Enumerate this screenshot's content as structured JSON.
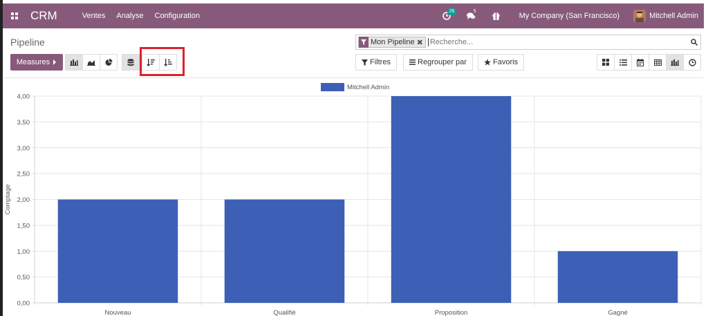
{
  "navbar": {
    "brand": "CRM",
    "menu": [
      "Ventes",
      "Analyse",
      "Configuration"
    ],
    "activity_count": "26",
    "messages_count": "5",
    "company": "My Company (San Francisco)",
    "user": "Mitchell Admin",
    "color": "#875a7b"
  },
  "control": {
    "title": "Pipeline",
    "measures_label": "Measures",
    "search": {
      "facet": "Mon Pipeline",
      "placeholder": "Recherche..."
    },
    "filters_label": "Filtres",
    "group_by_label": "Regrouper par",
    "favorites_label": "Favoris"
  },
  "chart_data": {
    "type": "bar",
    "categories": [
      "Nouveau",
      "Qualifié",
      "Proposition",
      "Gagné"
    ],
    "series": [
      {
        "name": "Mitchell Admin",
        "values": [
          2,
          2,
          4,
          1
        ],
        "color": "#3d5fb6"
      }
    ],
    "ylabel": "Comptage",
    "ylim": [
      0,
      4
    ],
    "yticks": [
      "0,00",
      "0,50",
      "1,00",
      "1,50",
      "2,00",
      "2,50",
      "3,00",
      "3,50",
      "4,00"
    ],
    "grid": true,
    "legend": "top-center"
  }
}
